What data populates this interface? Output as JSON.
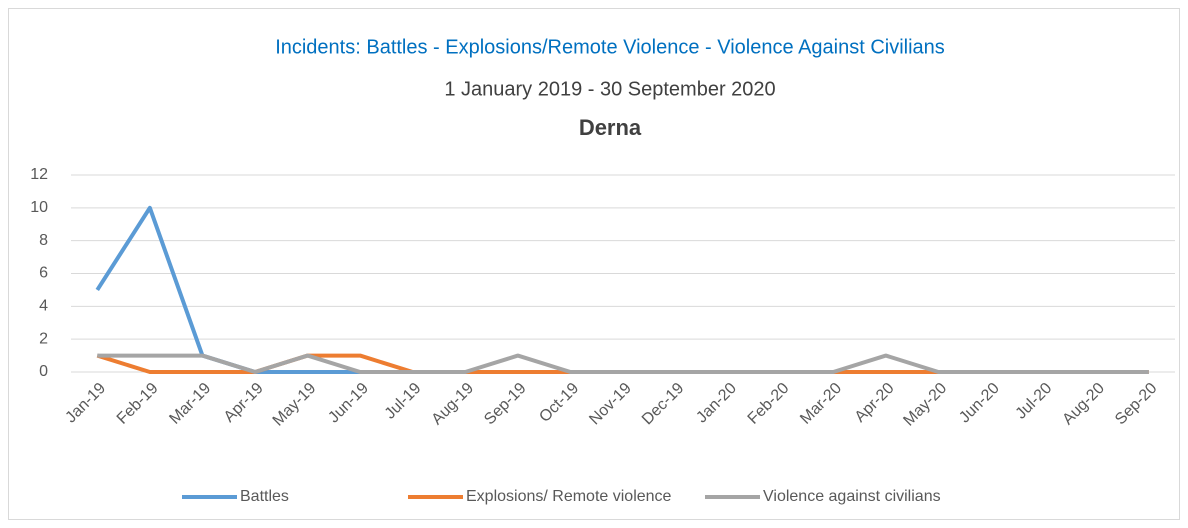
{
  "chart_data": {
    "type": "line",
    "title": "Incidents: Battles - Explosions/Remote Violence - Violence Against Civilians",
    "subtitle": "1 January 2019 -  30 September 2020",
    "location": "Derna",
    "categories": [
      "Jan-19",
      "Feb-19",
      "Mar-19",
      "Apr-19",
      "May-19",
      "Jun-19",
      "Jul-19",
      "Aug-19",
      "Sep-19",
      "Oct-19",
      "Nov-19",
      "Dec-19",
      "Jan-20",
      "Feb-20",
      "Mar-20",
      "Apr-20",
      "May-20",
      "Jun-20",
      "Jul-20",
      "Aug-20",
      "Sep-20"
    ],
    "series": [
      {
        "name": "Battles",
        "color": "#5b9bd5",
        "values": [
          5,
          10,
          1,
          0,
          0,
          0,
          0,
          0,
          0,
          0,
          0,
          0,
          0,
          0,
          0,
          0,
          0,
          0,
          0,
          0,
          0
        ]
      },
      {
        "name": "Explosions/ Remote violence",
        "color": "#ed7d31",
        "values": [
          1,
          0,
          0,
          0,
          1,
          1,
          0,
          0,
          0,
          0,
          0,
          0,
          0,
          0,
          0,
          0,
          0,
          0,
          0,
          0,
          0
        ]
      },
      {
        "name": "Violence against civilians",
        "color": "#a5a5a5",
        "values": [
          1,
          1,
          1,
          0,
          1,
          0,
          0,
          0,
          1,
          0,
          0,
          0,
          0,
          0,
          0,
          1,
          0,
          0,
          0,
          0,
          0
        ]
      }
    ],
    "ylim": [
      0,
      12
    ],
    "yticks": [
      0,
      2,
      4,
      6,
      8,
      10,
      12
    ],
    "grid": true,
    "legend": "bottom"
  }
}
